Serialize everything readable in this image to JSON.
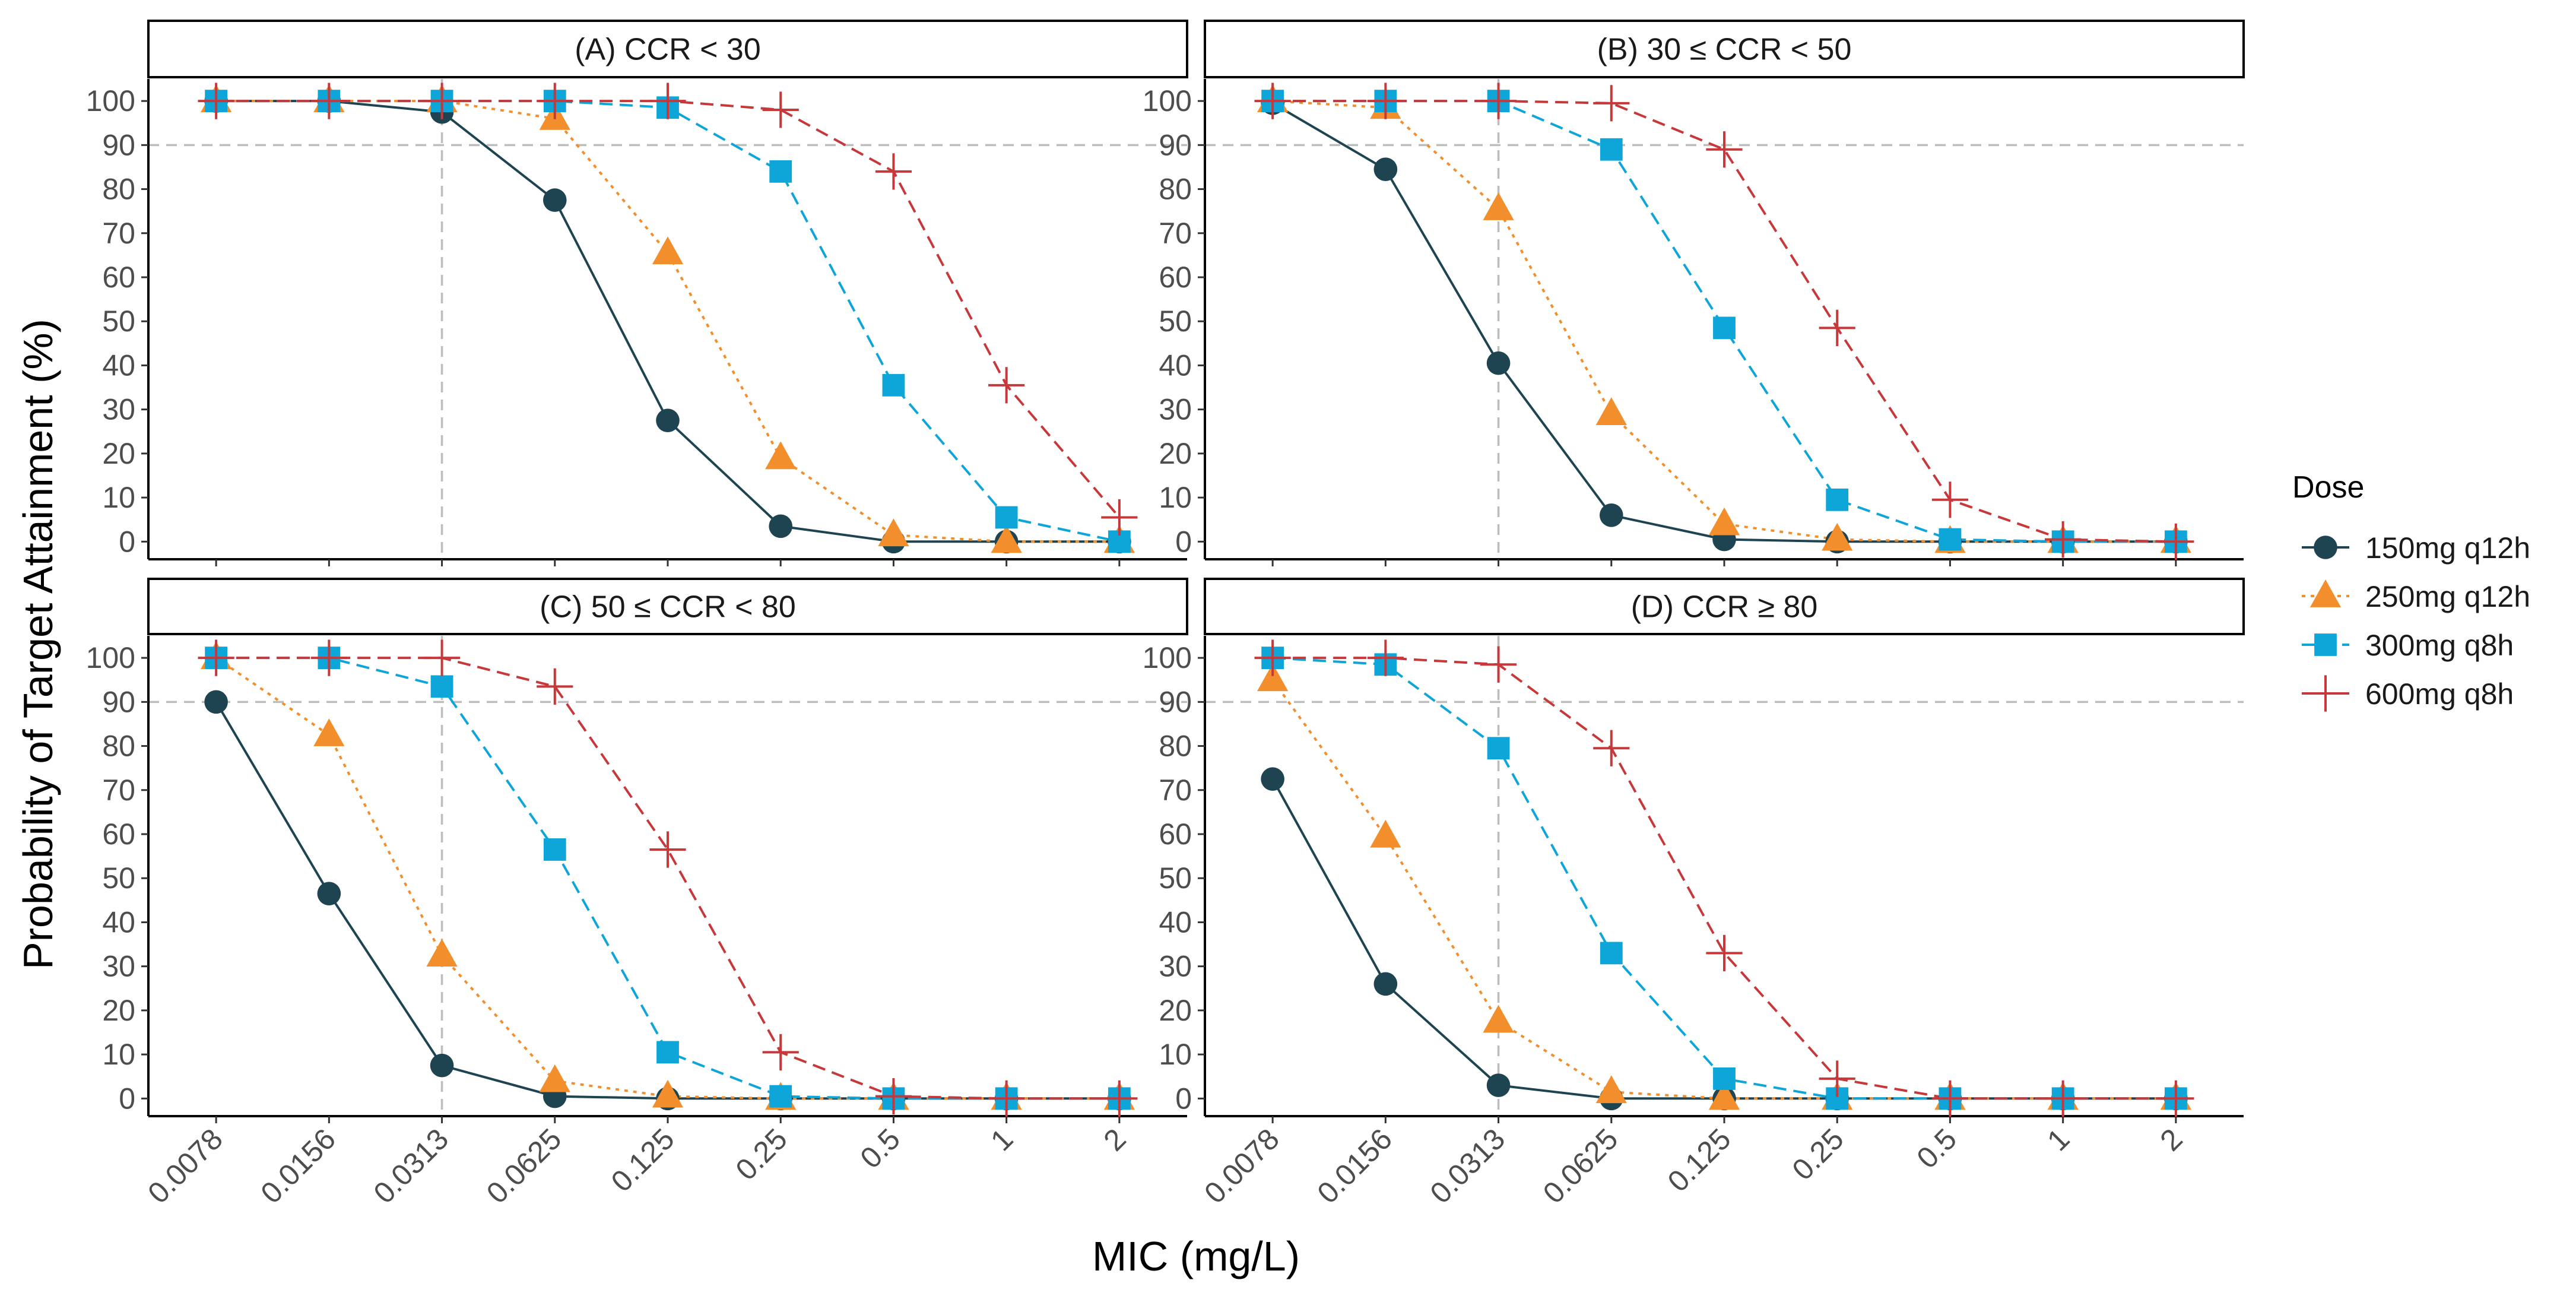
{
  "chart_data": {
    "type": "line",
    "facet_titles": [
      "(A) CCR < 30",
      "(B) 30 ≤ CCR < 50",
      "(C) 50 ≤ CCR < 80",
      "(D) CCR ≥ 80"
    ],
    "categories": [
      "0.0078",
      "0.0156",
      "0.0313",
      "0.0625",
      "0.125",
      "0.25",
      "0.5",
      "1",
      "2"
    ],
    "xlabel": "MIC (mg/L)",
    "ylabel": "Probability of Target Attainment (%)",
    "yticks": [
      "0",
      "10",
      "20",
      "30",
      "40",
      "50",
      "60",
      "70",
      "80",
      "90",
      "100"
    ],
    "ylim": [
      -4,
      105
    ],
    "reference_lines": {
      "y": 90,
      "x_category": "0.0313"
    },
    "legend": {
      "title": "Dose",
      "position": "right"
    },
    "series_styles": [
      {
        "name": "150mg q12h",
        "color": "#1d4450",
        "marker": "circle",
        "dash": "solid"
      },
      {
        "name": "250mg q12h",
        "color": "#f28e2b",
        "marker": "triangle",
        "dash": "dotted"
      },
      {
        "name": "300mg q8h",
        "color": "#0ea5d8",
        "marker": "square",
        "dash": "dashed"
      },
      {
        "name": "600mg q8h",
        "color": "#c7383a",
        "marker": "plus",
        "dash": "dashed"
      }
    ],
    "panels": [
      {
        "title": "(A) CCR < 30",
        "series": [
          {
            "name": "150mg q12h",
            "values": [
              100,
              100,
              97.5,
              77.5,
              27.5,
              3.5,
              0,
              0,
              0
            ]
          },
          {
            "name": "250mg q12h",
            "values": [
              100,
              100,
              100,
              96,
              65.5,
              19,
              1.5,
              0,
              0
            ]
          },
          {
            "name": "300mg q8h",
            "values": [
              100,
              100,
              100,
              100,
              98.5,
              84,
              35.5,
              5.5,
              0
            ]
          },
          {
            "name": "600mg q8h",
            "values": [
              100,
              100,
              100,
              100,
              100,
              98,
              84,
              35.5,
              5.5
            ]
          }
        ]
      },
      {
        "title": "(B) 30 ≤ CCR < 50",
        "series": [
          {
            "name": "150mg q12h",
            "values": [
              99.5,
              84.5,
              40.5,
              6,
              0.5,
              0,
              0,
              0,
              0
            ]
          },
          {
            "name": "250mg q12h",
            "values": [
              100,
              98.5,
              75.5,
              29,
              4,
              0.5,
              0,
              0,
              0
            ]
          },
          {
            "name": "300mg q8h",
            "values": [
              100,
              100,
              100,
              89,
              48.5,
              9.5,
              0.5,
              0,
              0
            ]
          },
          {
            "name": "600mg q8h",
            "values": [
              100,
              100,
              100,
              99.5,
              89,
              48.5,
              9.5,
              0.5,
              0
            ]
          }
        ]
      },
      {
        "title": "(C) 50 ≤ CCR < 80",
        "series": [
          {
            "name": "150mg q12h",
            "values": [
              90,
              46.5,
              7.5,
              0.5,
              0,
              0,
              0,
              0,
              0
            ]
          },
          {
            "name": "250mg q12h",
            "values": [
              100,
              82.5,
              32.5,
              4,
              0.5,
              0,
              0,
              0,
              0
            ]
          },
          {
            "name": "300mg q8h",
            "values": [
              100,
              100,
              93.5,
              56.5,
              10.5,
              0.5,
              0,
              0,
              0
            ]
          },
          {
            "name": "600mg q8h",
            "values": [
              100,
              100,
              100,
              93.5,
              56.5,
              10.5,
              0.5,
              0,
              0
            ]
          }
        ]
      },
      {
        "title": "(D) CCR ≥ 80",
        "series": [
          {
            "name": "150mg q12h",
            "values": [
              72.5,
              26,
              3,
              0,
              0,
              0,
              0,
              0,
              0
            ]
          },
          {
            "name": "250mg q12h",
            "values": [
              95,
              59.5,
              17.5,
              1.5,
              0,
              0,
              0,
              0,
              0
            ]
          },
          {
            "name": "300mg q8h",
            "values": [
              100,
              98.5,
              79.5,
              33,
              4.5,
              0,
              0,
              0,
              0
            ]
          },
          {
            "name": "600mg q8h",
            "values": [
              100,
              100,
              98.5,
              79.5,
              33,
              4.5,
              0,
              0,
              0
            ]
          }
        ]
      }
    ]
  }
}
